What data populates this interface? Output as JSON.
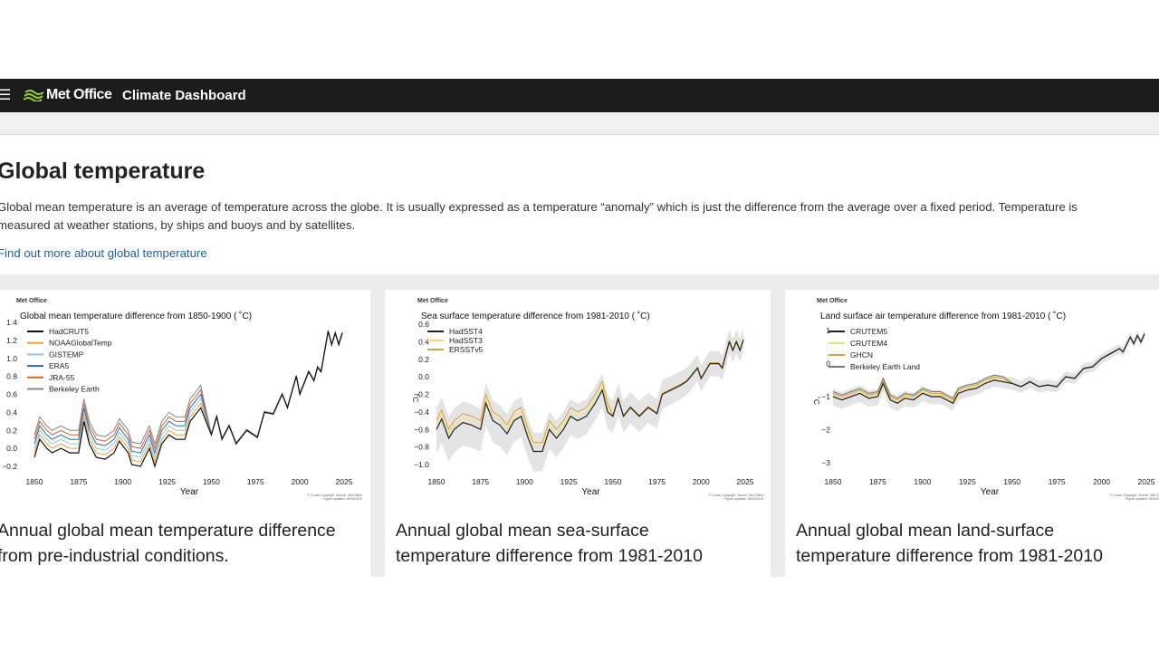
{
  "nav": {
    "menu_icon": "hamburger-icon",
    "brand": "Met Office",
    "app_title": "Climate Dashboard",
    "brand_color": "#9acd32"
  },
  "intro": {
    "title": "Global temperature",
    "description": "Global mean temperature is an average of temperature across the globe. It is usually expressed as a temperature “anomaly” which is just the difference from the average over a fixed period. Temperature is measured at weather stations, by ships and buoys and by satellites.",
    "link": "Find out more about global temperature"
  },
  "cards": [
    {
      "caption": "Annual global mean temperature difference from pre-industrial conditions.",
      "chart": {
        "logo": "Met Office",
        "title": "Global mean temperature difference from 1850-1900 ( ˚C)",
        "xlabel": "Year",
        "ylabel": "",
        "xticks": [
          "1850",
          "1875",
          "1900",
          "1925",
          "1950",
          "1975",
          "2000",
          "2025"
        ],
        "yticks": [
          "1.4",
          "1.2",
          "1.0",
          "0.8",
          "0.6",
          "0.4",
          "0.2",
          "0.0",
          "−0.2"
        ],
        "ylim": [
          -0.2,
          1.4
        ],
        "xlim": [
          1850,
          2025
        ],
        "credit": "© Crown Copyright. Source: Met Office",
        "updated": "Figure updated: 25/04/2023",
        "series": [
          {
            "name": "HadCRUT5",
            "color": "#111111"
          },
          {
            "name": "NOAAGlobalTemp",
            "color": "#e8a33a"
          },
          {
            "name": "GISTEMP",
            "color": "#8cc8e8"
          },
          {
            "name": "ERA5",
            "color": "#2a6fa8"
          },
          {
            "name": "JRA-55",
            "color": "#d9622b"
          },
          {
            "name": "Berkeley Earth",
            "color": "#888888"
          }
        ],
        "line": [
          [
            1850,
            -0.1
          ],
          [
            1853,
            0.1
          ],
          [
            1857,
            0.0
          ],
          [
            1860,
            -0.05
          ],
          [
            1865,
            0.0
          ],
          [
            1870,
            -0.05
          ],
          [
            1875,
            -0.05
          ],
          [
            1878,
            0.3
          ],
          [
            1881,
            0.05
          ],
          [
            1885,
            -0.1
          ],
          [
            1890,
            -0.12
          ],
          [
            1895,
            -0.05
          ],
          [
            1898,
            0.08
          ],
          [
            1903,
            -0.05
          ],
          [
            1905,
            -0.18
          ],
          [
            1910,
            -0.2
          ],
          [
            1915,
            0.0
          ],
          [
            1918,
            -0.2
          ],
          [
            1922,
            0.05
          ],
          [
            1926,
            0.15
          ],
          [
            1930,
            0.1
          ],
          [
            1935,
            0.1
          ],
          [
            1938,
            0.3
          ],
          [
            1944,
            0.45
          ],
          [
            1950,
            0.15
          ],
          [
            1953,
            0.35
          ],
          [
            1956,
            0.1
          ],
          [
            1960,
            0.25
          ],
          [
            1964,
            0.05
          ],
          [
            1970,
            0.2
          ],
          [
            1976,
            0.12
          ],
          [
            1980,
            0.4
          ],
          [
            1985,
            0.38
          ],
          [
            1990,
            0.6
          ],
          [
            1993,
            0.45
          ],
          [
            1998,
            0.8
          ],
          [
            2000,
            0.6
          ],
          [
            2005,
            0.85
          ],
          [
            2008,
            0.75
          ],
          [
            2010,
            0.9
          ],
          [
            2012,
            0.85
          ],
          [
            2016,
            1.3
          ],
          [
            2018,
            1.15
          ],
          [
            2020,
            1.28
          ],
          [
            2022,
            1.15
          ],
          [
            2024,
            1.28
          ]
        ]
      }
    },
    {
      "caption": "Annual global mean sea-surface temperature difference from 1981-2010",
      "chart": {
        "logo": "Met Office",
        "title": "Sea surface temperature difference from 1981-2010 ( ˚C)",
        "xlabel": "Year",
        "ylabel": "˚C",
        "xticks": [
          "1850",
          "1875",
          "1900",
          "1925",
          "1950",
          "1975",
          "2000",
          "2025"
        ],
        "yticks": [
          "0.6",
          "0.4",
          "0.2",
          "0.0",
          "−0.2",
          "−0.4",
          "−0.6",
          "−0.8",
          "−1.0"
        ],
        "ylim": [
          -1.0,
          0.6
        ],
        "xlim": [
          1850,
          2025
        ],
        "credit": "© Crown Copyright. Source: Met Office",
        "updated": "Figure updated: 25/04/2023",
        "series": [
          {
            "name": "HadSST4",
            "color": "#222222"
          },
          {
            "name": "HadSST3",
            "color": "#f2dd7a"
          },
          {
            "name": "ERSSTv5",
            "color": "#d9a23a"
          }
        ],
        "line": [
          [
            1850,
            -0.6
          ],
          [
            1853,
            -0.48
          ],
          [
            1857,
            -0.7
          ],
          [
            1860,
            -0.6
          ],
          [
            1865,
            -0.52
          ],
          [
            1870,
            -0.55
          ],
          [
            1875,
            -0.6
          ],
          [
            1878,
            -0.3
          ],
          [
            1882,
            -0.5
          ],
          [
            1886,
            -0.55
          ],
          [
            1890,
            -0.65
          ],
          [
            1894,
            -0.5
          ],
          [
            1898,
            -0.45
          ],
          [
            1902,
            -0.7
          ],
          [
            1905,
            -0.85
          ],
          [
            1910,
            -0.85
          ],
          [
            1914,
            -0.6
          ],
          [
            1918,
            -0.7
          ],
          [
            1922,
            -0.6
          ],
          [
            1926,
            -0.45
          ],
          [
            1930,
            -0.5
          ],
          [
            1935,
            -0.45
          ],
          [
            1940,
            -0.3
          ],
          [
            1944,
            -0.15
          ],
          [
            1947,
            -0.4
          ],
          [
            1950,
            -0.45
          ],
          [
            1953,
            -0.25
          ],
          [
            1956,
            -0.45
          ],
          [
            1960,
            -0.35
          ],
          [
            1965,
            -0.45
          ],
          [
            1970,
            -0.35
          ],
          [
            1975,
            -0.42
          ],
          [
            1978,
            -0.2
          ],
          [
            1983,
            -0.15
          ],
          [
            1988,
            -0.1
          ],
          [
            1992,
            -0.05
          ],
          [
            1998,
            0.1
          ],
          [
            2000,
            -0.02
          ],
          [
            2005,
            0.15
          ],
          [
            2010,
            0.15
          ],
          [
            2012,
            0.1
          ],
          [
            2016,
            0.4
          ],
          [
            2018,
            0.3
          ],
          [
            2020,
            0.4
          ],
          [
            2022,
            0.3
          ],
          [
            2024,
            0.42
          ]
        ]
      }
    },
    {
      "caption": "Annual global mean land-surface temperature difference from 1981-2010",
      "chart": {
        "logo": "Met Office",
        "title": "Land surface air temperature difference from 1981-2010 ( ˚C)",
        "xlabel": "Year",
        "ylabel": "˚C",
        "xticks": [
          "1850",
          "1875",
          "1900",
          "1925",
          "1950",
          "1975",
          "2000",
          "2025"
        ],
        "yticks": [
          "1",
          "0",
          "−1",
          "−2",
          "−3"
        ],
        "ylim": [
          -3,
          1
        ],
        "xlim": [
          1850,
          2025
        ],
        "credit": "© Crown Copyright. Source: Met Office",
        "updated": "Figure updated: 25/04/2023",
        "series": [
          {
            "name": "CRUTEM5",
            "color": "#222222"
          },
          {
            "name": "CRUTEM4",
            "color": "#f2dd7a"
          },
          {
            "name": "GHCN",
            "color": "#d9a23a"
          },
          {
            "name": "Berkeley Earth Land",
            "color": "#777777"
          }
        ],
        "line": [
          [
            1850,
            -1.0
          ],
          [
            1855,
            -1.1
          ],
          [
            1860,
            -1.0
          ],
          [
            1865,
            -0.9
          ],
          [
            1870,
            -1.05
          ],
          [
            1875,
            -1.0
          ],
          [
            1878,
            -0.6
          ],
          [
            1882,
            -1.1
          ],
          [
            1886,
            -1.2
          ],
          [
            1890,
            -1.05
          ],
          [
            1895,
            -1.1
          ],
          [
            1900,
            -0.9
          ],
          [
            1905,
            -1.0
          ],
          [
            1910,
            -1.0
          ],
          [
            1917,
            -1.2
          ],
          [
            1920,
            -0.9
          ],
          [
            1925,
            -0.8
          ],
          [
            1930,
            -0.75
          ],
          [
            1935,
            -0.6
          ],
          [
            1940,
            -0.5
          ],
          [
            1945,
            -0.55
          ],
          [
            1950,
            -0.6
          ],
          [
            1955,
            -0.7
          ],
          [
            1960,
            -0.55
          ],
          [
            1965,
            -0.7
          ],
          [
            1970,
            -0.65
          ],
          [
            1975,
            -0.7
          ],
          [
            1980,
            -0.4
          ],
          [
            1985,
            -0.45
          ],
          [
            1990,
            -0.15
          ],
          [
            1995,
            -0.1
          ],
          [
            2000,
            0.15
          ],
          [
            2005,
            0.3
          ],
          [
            2010,
            0.45
          ],
          [
            2012,
            0.35
          ],
          [
            2016,
            0.8
          ],
          [
            2018,
            0.6
          ],
          [
            2020,
            0.85
          ],
          [
            2022,
            0.65
          ],
          [
            2024,
            0.9
          ]
        ]
      }
    }
  ]
}
